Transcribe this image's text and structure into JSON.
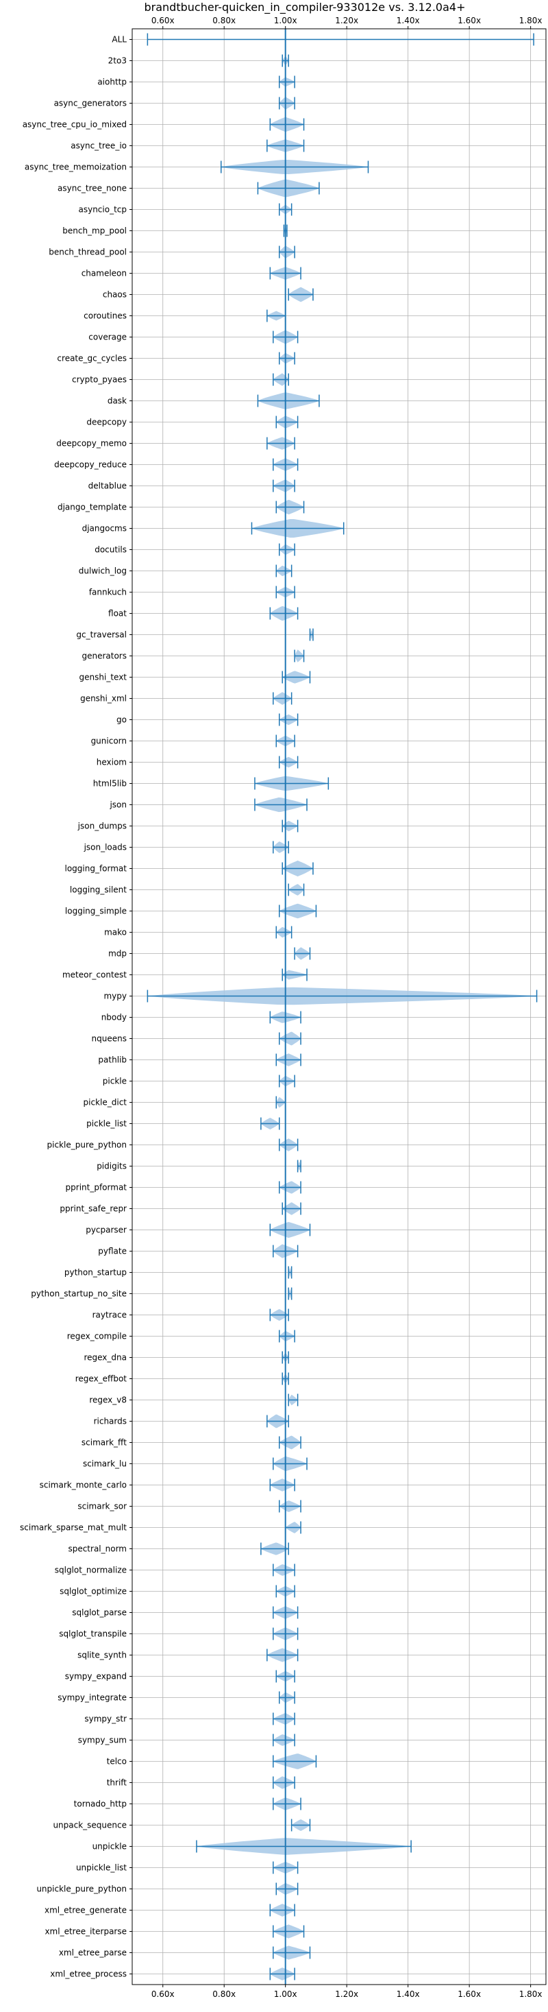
{
  "chart_data": {
    "type": "violin",
    "title": "brandtbucher-quicken_in_compiler-933012e vs. 3.12.0a4+",
    "xlabel": "",
    "ylabel": "",
    "orientation": "horizontal",
    "xlim": [
      0.5,
      1.85
    ],
    "xticks": [
      0.6,
      0.8,
      1.0,
      1.2,
      1.4,
      1.6,
      1.8
    ],
    "xtick_labels": [
      "0.60x",
      "0.80x",
      "1.00x",
      "1.20x",
      "1.40x",
      "1.60x",
      "1.80x"
    ],
    "tick_positions": [
      "top",
      "bottom"
    ],
    "grid": true,
    "reference_line": 1.0,
    "colors": {
      "violin": "#a6c8e6",
      "line": "#1f77b4"
    },
    "categories": [
      {
        "name": "ALL",
        "min": 0.55,
        "max": 1.81,
        "median": 1.0,
        "width": 0.025
      },
      {
        "name": "2to3",
        "min": 0.99,
        "max": 1.01,
        "median": 1.0,
        "width": 0.45
      },
      {
        "name": "aiohttp",
        "min": 0.98,
        "max": 1.03,
        "median": 1.0,
        "width": 0.45
      },
      {
        "name": "async_generators",
        "min": 0.98,
        "max": 1.03,
        "median": 1.0,
        "width": 0.6
      },
      {
        "name": "async_tree_cpu_io_mixed",
        "min": 0.95,
        "max": 1.06,
        "median": 1.0,
        "width": 0.7
      },
      {
        "name": "async_tree_io",
        "min": 0.94,
        "max": 1.06,
        "median": 1.0,
        "width": 0.6
      },
      {
        "name": "async_tree_memoization",
        "min": 0.79,
        "max": 1.27,
        "median": 1.0,
        "width": 0.7
      },
      {
        "name": "async_tree_none",
        "min": 0.91,
        "max": 1.11,
        "median": 1.0,
        "width": 0.85
      },
      {
        "name": "asyncio_tcp",
        "min": 0.98,
        "max": 1.02,
        "median": 1.0,
        "width": 0.45
      },
      {
        "name": "bench_mp_pool",
        "min": 0.995,
        "max": 1.005,
        "median": 1.0,
        "width": 0.45
      },
      {
        "name": "bench_thread_pool",
        "min": 0.98,
        "max": 1.03,
        "median": 1.0,
        "width": 0.6
      },
      {
        "name": "chameleon",
        "min": 0.95,
        "max": 1.05,
        "median": 1.0,
        "width": 0.6
      },
      {
        "name": "chaos",
        "min": 1.01,
        "max": 1.09,
        "median": 1.05,
        "width": 0.7
      },
      {
        "name": "coroutines",
        "min": 0.94,
        "max": 1.0,
        "median": 0.97,
        "width": 0.45
      },
      {
        "name": "coverage",
        "min": 0.96,
        "max": 1.04,
        "median": 1.0,
        "width": 0.65
      },
      {
        "name": "create_gc_cycles",
        "min": 0.98,
        "max": 1.03,
        "median": 1.0,
        "width": 0.5
      },
      {
        "name": "crypto_pyaes",
        "min": 0.96,
        "max": 1.01,
        "median": 0.99,
        "width": 0.6
      },
      {
        "name": "dask",
        "min": 0.91,
        "max": 1.11,
        "median": 1.0,
        "width": 0.8
      },
      {
        "name": "deepcopy",
        "min": 0.97,
        "max": 1.04,
        "median": 1.0,
        "width": 0.6
      },
      {
        "name": "deepcopy_memo",
        "min": 0.94,
        "max": 1.03,
        "median": 0.99,
        "width": 0.6
      },
      {
        "name": "deepcopy_reduce",
        "min": 0.96,
        "max": 1.04,
        "median": 1.0,
        "width": 0.6
      },
      {
        "name": "deltablue",
        "min": 0.96,
        "max": 1.03,
        "median": 1.0,
        "width": 0.6
      },
      {
        "name": "django_template",
        "min": 0.97,
        "max": 1.06,
        "median": 1.01,
        "width": 0.7
      },
      {
        "name": "djangocms",
        "min": 0.89,
        "max": 1.19,
        "median": 1.02,
        "width": 0.9
      },
      {
        "name": "docutils",
        "min": 0.98,
        "max": 1.03,
        "median": 1.0,
        "width": 0.5
      },
      {
        "name": "dulwich_log",
        "min": 0.97,
        "max": 1.02,
        "median": 0.99,
        "width": 0.5
      },
      {
        "name": "fannkuch",
        "min": 0.97,
        "max": 1.03,
        "median": 1.0,
        "width": 0.5
      },
      {
        "name": "float",
        "min": 0.95,
        "max": 1.04,
        "median": 0.99,
        "width": 0.7
      },
      {
        "name": "gc_traversal",
        "min": 1.08,
        "max": 1.09,
        "median": 1.085,
        "width": 0.45
      },
      {
        "name": "generators",
        "min": 1.03,
        "max": 1.06,
        "median": 1.04,
        "width": 0.6
      },
      {
        "name": "genshi_text",
        "min": 0.99,
        "max": 1.08,
        "median": 1.03,
        "width": 0.6
      },
      {
        "name": "genshi_xml",
        "min": 0.96,
        "max": 1.02,
        "median": 0.99,
        "width": 0.6
      },
      {
        "name": "go",
        "min": 0.98,
        "max": 1.04,
        "median": 1.01,
        "width": 0.5
      },
      {
        "name": "gunicorn",
        "min": 0.97,
        "max": 1.03,
        "median": 1.0,
        "width": 0.5
      },
      {
        "name": "hexiom",
        "min": 0.98,
        "max": 1.04,
        "median": 1.01,
        "width": 0.5
      },
      {
        "name": "html5lib",
        "min": 0.9,
        "max": 1.14,
        "median": 1.0,
        "width": 0.7
      },
      {
        "name": "json",
        "min": 0.9,
        "max": 1.07,
        "median": 0.98,
        "width": 0.7
      },
      {
        "name": "json_dumps",
        "min": 0.99,
        "max": 1.04,
        "median": 1.01,
        "width": 0.5
      },
      {
        "name": "json_loads",
        "min": 0.96,
        "max": 1.01,
        "median": 0.98,
        "width": 0.55
      },
      {
        "name": "logging_format",
        "min": 0.99,
        "max": 1.09,
        "median": 1.04,
        "width": 0.75
      },
      {
        "name": "logging_silent",
        "min": 1.01,
        "max": 1.06,
        "median": 1.04,
        "width": 0.55
      },
      {
        "name": "logging_simple",
        "min": 0.98,
        "max": 1.1,
        "median": 1.04,
        "width": 0.7
      },
      {
        "name": "mako",
        "min": 0.97,
        "max": 1.02,
        "median": 0.99,
        "width": 0.5
      },
      {
        "name": "mdp",
        "min": 1.03,
        "max": 1.08,
        "median": 1.05,
        "width": 0.6
      },
      {
        "name": "meteor_contest",
        "min": 0.99,
        "max": 1.07,
        "median": 1.01,
        "width": 0.45
      },
      {
        "name": "mypy",
        "min": 0.55,
        "max": 1.82,
        "median": 1.0,
        "width": 0.85
      },
      {
        "name": "nbody",
        "min": 0.95,
        "max": 1.05,
        "median": 0.99,
        "width": 0.55
      },
      {
        "name": "nqueens",
        "min": 0.98,
        "max": 1.05,
        "median": 1.02,
        "width": 0.65
      },
      {
        "name": "pathlib",
        "min": 0.97,
        "max": 1.05,
        "median": 1.01,
        "width": 0.6
      },
      {
        "name": "pickle",
        "min": 0.98,
        "max": 1.03,
        "median": 1.0,
        "width": 0.5
      },
      {
        "name": "pickle_dict",
        "min": 0.97,
        "max": 1.0,
        "median": 0.98,
        "width": 0.5
      },
      {
        "name": "pickle_list",
        "min": 0.92,
        "max": 0.98,
        "median": 0.95,
        "width": 0.55
      },
      {
        "name": "pickle_pure_python",
        "min": 0.98,
        "max": 1.04,
        "median": 1.01,
        "width": 0.6
      },
      {
        "name": "pidigits",
        "min": 1.04,
        "max": 1.05,
        "median": 1.045,
        "width": 0.45
      },
      {
        "name": "pprint_pformat",
        "min": 0.98,
        "max": 1.05,
        "median": 1.02,
        "width": 0.6
      },
      {
        "name": "pprint_safe_repr",
        "min": 0.99,
        "max": 1.05,
        "median": 1.02,
        "width": 0.6
      },
      {
        "name": "pycparser",
        "min": 0.95,
        "max": 1.08,
        "median": 1.01,
        "width": 0.75
      },
      {
        "name": "pyflate",
        "min": 0.96,
        "max": 1.04,
        "median": 0.99,
        "width": 0.65
      },
      {
        "name": "python_startup",
        "min": 1.01,
        "max": 1.02,
        "median": 1.015,
        "width": 0.45
      },
      {
        "name": "python_startup_no_site",
        "min": 1.01,
        "max": 1.02,
        "median": 1.015,
        "width": 0.45
      },
      {
        "name": "raytrace",
        "min": 0.95,
        "max": 1.01,
        "median": 0.98,
        "width": 0.55
      },
      {
        "name": "regex_compile",
        "min": 0.98,
        "max": 1.03,
        "median": 1.0,
        "width": 0.5
      },
      {
        "name": "regex_dna",
        "min": 0.99,
        "max": 1.01,
        "median": 1.0,
        "width": 0.45
      },
      {
        "name": "regex_effbot",
        "min": 0.99,
        "max": 1.01,
        "median": 1.0,
        "width": 0.45
      },
      {
        "name": "regex_v8",
        "min": 1.01,
        "max": 1.04,
        "median": 1.02,
        "width": 0.5
      },
      {
        "name": "richards",
        "min": 0.94,
        "max": 1.01,
        "median": 0.97,
        "width": 0.65
      },
      {
        "name": "scimark_fft",
        "min": 0.98,
        "max": 1.05,
        "median": 1.02,
        "width": 0.65
      },
      {
        "name": "scimark_lu",
        "min": 0.96,
        "max": 1.07,
        "median": 1.0,
        "width": 0.7
      },
      {
        "name": "scimark_monte_carlo",
        "min": 0.95,
        "max": 1.03,
        "median": 0.99,
        "width": 0.6
      },
      {
        "name": "scimark_sor",
        "min": 0.98,
        "max": 1.05,
        "median": 1.01,
        "width": 0.55
      },
      {
        "name": "scimark_sparse_mat_mult",
        "min": 1.0,
        "max": 1.05,
        "median": 1.03,
        "width": 0.55
      },
      {
        "name": "spectral_norm",
        "min": 0.92,
        "max": 1.01,
        "median": 0.97,
        "width": 0.6
      },
      {
        "name": "sqlglot_normalize",
        "min": 0.96,
        "max": 1.03,
        "median": 0.99,
        "width": 0.55
      },
      {
        "name": "sqlglot_optimize",
        "min": 0.97,
        "max": 1.03,
        "median": 1.0,
        "width": 0.5
      },
      {
        "name": "sqlglot_parse",
        "min": 0.96,
        "max": 1.04,
        "median": 1.0,
        "width": 0.6
      },
      {
        "name": "sqlglot_transpile",
        "min": 0.96,
        "max": 1.04,
        "median": 1.0,
        "width": 0.6
      },
      {
        "name": "sqlite_synth",
        "min": 0.94,
        "max": 1.04,
        "median": 0.99,
        "width": 0.65
      },
      {
        "name": "sympy_expand",
        "min": 0.97,
        "max": 1.03,
        "median": 1.0,
        "width": 0.5
      },
      {
        "name": "sympy_integrate",
        "min": 0.98,
        "max": 1.03,
        "median": 1.0,
        "width": 0.5
      },
      {
        "name": "sympy_str",
        "min": 0.96,
        "max": 1.03,
        "median": 1.0,
        "width": 0.55
      },
      {
        "name": "sympy_sum",
        "min": 0.96,
        "max": 1.03,
        "median": 0.99,
        "width": 0.55
      },
      {
        "name": "telco",
        "min": 0.96,
        "max": 1.1,
        "median": 1.04,
        "width": 0.75
      },
      {
        "name": "thrift",
        "min": 0.96,
        "max": 1.03,
        "median": 0.99,
        "width": 0.6
      },
      {
        "name": "tornado_http",
        "min": 0.96,
        "max": 1.05,
        "median": 1.0,
        "width": 0.6
      },
      {
        "name": "unpack_sequence",
        "min": 1.02,
        "max": 1.08,
        "median": 1.05,
        "width": 0.55
      },
      {
        "name": "unpickle",
        "min": 0.71,
        "max": 1.41,
        "median": 1.0,
        "width": 0.8
      },
      {
        "name": "unpickle_list",
        "min": 0.96,
        "max": 1.04,
        "median": 1.0,
        "width": 0.55
      },
      {
        "name": "unpickle_pure_python",
        "min": 0.97,
        "max": 1.04,
        "median": 1.0,
        "width": 0.55
      },
      {
        "name": "xml_etree_generate",
        "min": 0.95,
        "max": 1.03,
        "median": 0.99,
        "width": 0.6
      },
      {
        "name": "xml_etree_iterparse",
        "min": 0.96,
        "max": 1.06,
        "median": 1.01,
        "width": 0.65
      },
      {
        "name": "xml_etree_parse",
        "min": 0.96,
        "max": 1.08,
        "median": 1.01,
        "width": 0.65
      },
      {
        "name": "xml_etree_process",
        "min": 0.95,
        "max": 1.03,
        "median": 0.99,
        "width": 0.6
      }
    ]
  }
}
